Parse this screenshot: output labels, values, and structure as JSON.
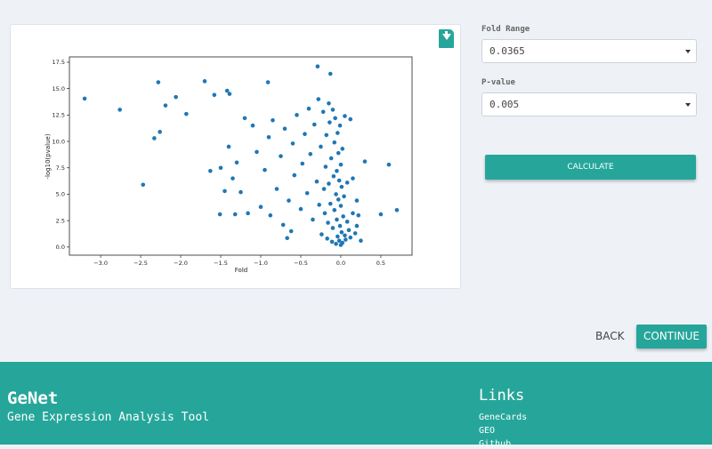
{
  "form": {
    "fields": [
      {
        "label": "Fold Range",
        "value": "0.0365"
      },
      {
        "label": "P-value",
        "value": "0.005"
      }
    ],
    "calculate": "CALCULATE",
    "back": "BACK",
    "continue": "CONTINUE"
  },
  "footer": {
    "title": "GeNet",
    "subtitle": "Gene Expression Analysis Tool",
    "links_heading": "Links",
    "links": [
      "GeneCards",
      "GEO",
      "Github"
    ]
  },
  "chart_data": {
    "type": "scatter",
    "xlabel": "Fold",
    "ylabel": "-log10(pvalue)",
    "color": "#1f77b4",
    "xlim": [
      -3.39,
      0.89
    ],
    "ylim": [
      -0.77,
      18.0
    ],
    "xticks": [
      {
        "value": -3.0,
        "label": "−3.0"
      },
      {
        "value": -2.5,
        "label": "−2.5"
      },
      {
        "value": -2.0,
        "label": "−2.0"
      },
      {
        "value": -1.5,
        "label": "−1.5"
      },
      {
        "value": -1.0,
        "label": "−1.0"
      },
      {
        "value": -0.5,
        "label": "−0.5"
      },
      {
        "value": 0.0,
        "label": "0.0"
      },
      {
        "value": 0.5,
        "label": "0.5"
      }
    ],
    "yticks": [
      {
        "value": 0.0,
        "label": "0.0"
      },
      2.5,
      {
        "value": 5.0,
        "label": "5.0"
      },
      7.5,
      {
        "value": 10.0,
        "label": "10.0"
      },
      12.5,
      {
        "value": 15.0,
        "label": "15.0"
      },
      17.5
    ],
    "x": [
      -3.2,
      -2.76,
      -2.47,
      -2.28,
      -2.33,
      -2.26,
      -2.19,
      -2.06,
      -1.93,
      -1.7,
      -1.63,
      -1.58,
      -1.51,
      -1.42,
      -1.39,
      -1.32,
      -1.16,
      -0.91,
      -0.67,
      -0.29,
      -0.13,
      0.6,
      0.7,
      0.5,
      0.3,
      0.12,
      -1.2,
      -1.1,
      -1.05,
      -0.95,
      -0.9,
      -0.85,
      -0.8,
      -0.75,
      -0.7,
      -0.65,
      -0.6,
      -0.58,
      -0.55,
      -0.5,
      -0.48,
      -0.45,
      -0.42,
      -0.4,
      -0.38,
      -0.35,
      -0.33,
      -0.3,
      -0.28,
      -0.27,
      -1.3,
      -1.25,
      -1.4,
      -1.45,
      -1.5,
      -1.35,
      -1.0,
      -0.88,
      -0.72,
      -0.62,
      -0.25,
      -0.24,
      -0.22,
      -0.21,
      -0.2,
      -0.19,
      -0.18,
      -0.17,
      -0.16,
      -0.15,
      -0.14,
      -0.13,
      -0.12,
      -0.11,
      -0.1,
      -0.1,
      -0.09,
      -0.08,
      -0.08,
      -0.07,
      -0.06,
      -0.06,
      -0.05,
      -0.05,
      -0.04,
      -0.04,
      -0.03,
      -0.03,
      -0.02,
      -0.02,
      -0.01,
      -0.01,
      0.0,
      0.0,
      0.0,
      0.01,
      0.01,
      0.02,
      0.02,
      0.03,
      0.04,
      0.05,
      0.06,
      0.08,
      0.1,
      0.12,
      0.15,
      0.18,
      0.2,
      0.25,
      0.05,
      -0.15,
      0.08,
      0.15,
      0.2,
      0.22
    ],
    "y": [
      14.05,
      13.0,
      5.9,
      15.6,
      10.3,
      10.9,
      13.4,
      14.2,
      12.6,
      15.7,
      7.2,
      14.4,
      3.1,
      14.8,
      14.5,
      3.1,
      3.2,
      15.6,
      0.85,
      17.1,
      16.4,
      7.8,
      3.5,
      3.1,
      8.1,
      12.1,
      12.2,
      11.5,
      9.0,
      7.3,
      10.4,
      12.0,
      5.5,
      8.6,
      11.2,
      4.4,
      9.8,
      6.8,
      12.5,
      3.6,
      7.9,
      10.7,
      5.1,
      13.1,
      8.8,
      2.6,
      11.6,
      6.2,
      14.0,
      4.0,
      8.0,
      5.2,
      9.5,
      5.3,
      7.5,
      6.5,
      3.8,
      3.0,
      2.1,
      1.5,
      9.5,
      1.2,
      12.8,
      5.5,
      3.2,
      7.6,
      10.6,
      0.8,
      2.3,
      6.0,
      11.8,
      4.1,
      8.4,
      0.5,
      13.0,
      1.8,
      6.7,
      3.5,
      9.9,
      12.2,
      0.3,
      5.0,
      7.2,
      2.6,
      10.8,
      1.0,
      4.5,
      8.9,
      0.6,
      6.3,
      11.5,
      2.0,
      3.9,
      0.2,
      7.8,
      1.4,
      5.7,
      9.3,
      0.4,
      2.9,
      4.8,
      1.1,
      0.7,
      2.4,
      1.6,
      0.9,
      3.2,
      1.3,
      2.0,
      0.6,
      12.4,
      13.6,
      6.1,
      6.5,
      4.4,
      3.0
    ]
  }
}
